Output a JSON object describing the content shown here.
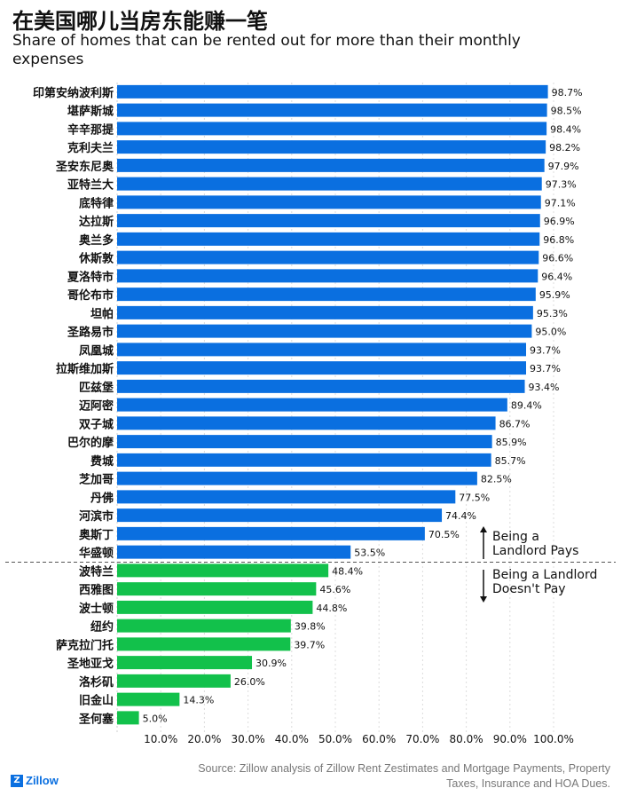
{
  "chart_data": {
    "type": "bar",
    "orientation": "horizontal",
    "title": "在美国哪儿当房东能赚一笔",
    "subtitle": "Share of homes that can be rented out for more than their monthly expenses",
    "categories": [
      "印第安纳波利斯",
      "堪萨斯城",
      "辛辛那提",
      "克利夫兰",
      "圣安东尼奥",
      "亚特兰大",
      "底特律",
      "达拉斯",
      "奥兰多",
      "休斯敦",
      "夏洛特市",
      "哥伦布市",
      "坦帕",
      "圣路易市",
      "凤凰城",
      "拉斯维加斯",
      "匹兹堡",
      "迈阿密",
      "双子城",
      "巴尔的摩",
      "费城",
      "芝加哥",
      "丹佛",
      "河滨市",
      "奥斯丁",
      "华盛顿",
      "波特兰",
      "西雅图",
      "波士顿",
      "纽约",
      "萨克拉门托",
      "圣地亚戈",
      "洛杉矶",
      "旧金山",
      "圣何塞"
    ],
    "values": [
      98.7,
      98.5,
      98.4,
      98.2,
      97.9,
      97.3,
      97.1,
      96.9,
      96.8,
      96.6,
      96.4,
      95.9,
      95.3,
      95.0,
      93.7,
      93.7,
      93.4,
      89.4,
      86.7,
      85.9,
      85.7,
      82.5,
      77.5,
      74.4,
      70.5,
      53.5,
      48.4,
      45.6,
      44.8,
      39.8,
      39.7,
      30.9,
      26.0,
      14.3,
      5.0
    ],
    "value_labels": [
      "98.7%",
      "98.5%",
      "98.4%",
      "98.2%",
      "97.9%",
      "97.3%",
      "97.1%",
      "96.9%",
      "96.8%",
      "96.6%",
      "96.4%",
      "95.9%",
      "95.3%",
      "95.0%",
      "93.7%",
      "93.7%",
      "93.4%",
      "89.4%",
      "86.7%",
      "85.9%",
      "85.7%",
      "82.5%",
      "77.5%",
      "74.4%",
      "70.5%",
      "53.5%",
      "48.4%",
      "45.6%",
      "44.8%",
      "39.8%",
      "39.7%",
      "30.9%",
      "26.0%",
      "14.3%",
      "5.0%"
    ],
    "xlim": [
      0,
      100
    ],
    "xticks": [
      "10.0%",
      "20.0%",
      "30.0%",
      "40.0%",
      "50.0%",
      "60.0%",
      "70.0%",
      "80.0%",
      "90.0%",
      "100.0%"
    ],
    "threshold": 50,
    "colors": {
      "above": "#0a6fe0",
      "below": "#12c14b"
    },
    "annotations": {
      "pays": [
        "Being a",
        "Landlord Pays"
      ],
      "doesnt_pay": [
        "Being a Landlord",
        "Doesn't Pay"
      ]
    },
    "grid": true
  },
  "source": "Source: Zillow analysis of Zillow Rent Zestimates and Mortgage Payments, Property Taxes, Insurance and HOA Dues.",
  "logo": {
    "mark": "Z",
    "text": "Zillow"
  }
}
